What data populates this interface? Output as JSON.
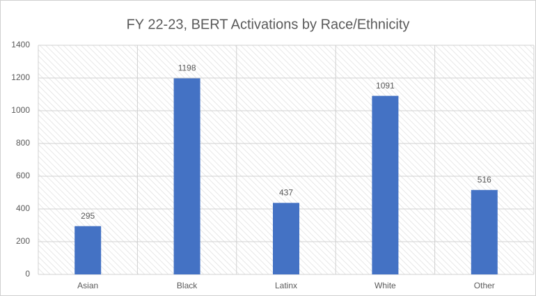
{
  "chart_data": {
    "type": "bar",
    "title": "FY 22-23, BERT Activations by Race/Ethnicity",
    "categories": [
      "Asian",
      "Black",
      "Latinx",
      "White",
      "Other"
    ],
    "values": [
      295,
      1198,
      437,
      1091,
      516
    ],
    "color": "#4472c4",
    "ylim": [
      0,
      1400
    ],
    "yticks": [
      0,
      200,
      400,
      600,
      800,
      1000,
      1200,
      1400
    ],
    "grid": true
  }
}
